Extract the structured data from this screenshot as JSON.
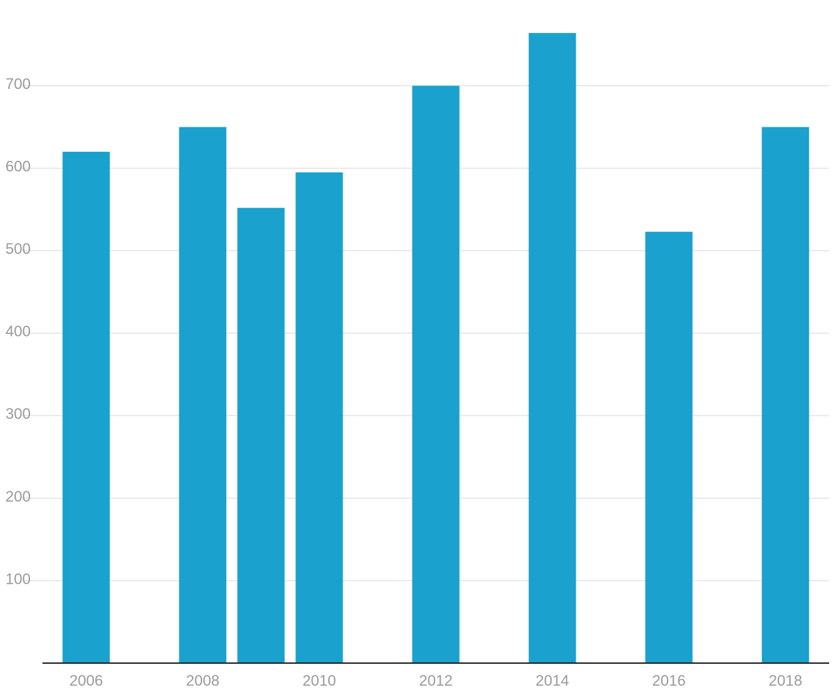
{
  "chart_data": {
    "type": "bar",
    "x": [
      2006,
      2008,
      2009,
      2010,
      2012,
      2014,
      2016,
      2018
    ],
    "values": [
      620,
      650,
      552,
      595,
      700,
      764,
      523,
      650
    ],
    "color": "#1aa1cd",
    "xlim": [
      2005.25,
      2018.75
    ],
    "xticks": [
      2006,
      2008,
      2010,
      2012,
      2014,
      2016,
      2018
    ],
    "ylim": [
      0,
      804
    ],
    "yticks": [
      100,
      200,
      300,
      400,
      500,
      600,
      700
    ],
    "grid": true
  }
}
